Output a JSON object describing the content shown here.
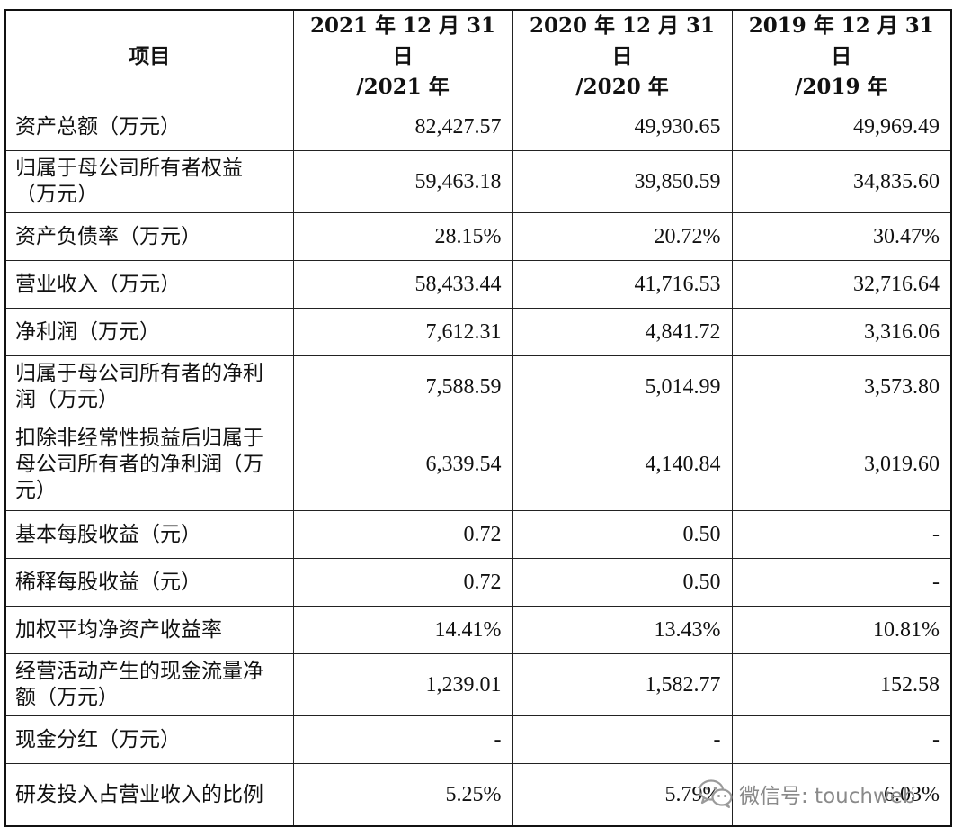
{
  "table": {
    "headers": [
      "项目",
      "2021年12月31日/2021年",
      "2020年12月31日/2020年",
      "2019年12月31日/2019年"
    ],
    "header_lines": [
      [
        "项目"
      ],
      [
        "2021 年 12 月 31 日",
        "/2021 年"
      ],
      [
        "2020 年 12 月 31 日",
        "/2020 年"
      ],
      [
        "2019 年 12 月 31 日",
        "/2019 年"
      ]
    ],
    "rows": [
      {
        "label": "资产总额（万元）",
        "values": [
          "82,427.57",
          "49,930.65",
          "49,969.49"
        ]
      },
      {
        "label": "归属于母公司所有者权益（万元）",
        "values": [
          "59,463.18",
          "39,850.59",
          "34,835.60"
        ]
      },
      {
        "label": "资产负债率（万元）",
        "values": [
          "28.15%",
          "20.72%",
          "30.47%"
        ]
      },
      {
        "label": "营业收入（万元）",
        "values": [
          "58,433.44",
          "41,716.53",
          "32,716.64"
        ]
      },
      {
        "label": "净利润（万元）",
        "values": [
          "7,612.31",
          "4,841.72",
          "3,316.06"
        ]
      },
      {
        "label": "归属于母公司所有者的净利润（万元）",
        "values": [
          "7,588.59",
          "5,014.99",
          "3,573.80"
        ]
      },
      {
        "label": "扣除非经常性损益后归属于母公司所有者的净利润（万元）",
        "values": [
          "6,339.54",
          "4,140.84",
          "3,019.60"
        ]
      },
      {
        "label": "基本每股收益（元）",
        "values": [
          "0.72",
          "0.50",
          "-"
        ]
      },
      {
        "label": "稀释每股收益（元）",
        "values": [
          "0.72",
          "0.50",
          "-"
        ]
      },
      {
        "label": "加权平均净资产收益率",
        "values": [
          "14.41%",
          "13.43%",
          "10.81%"
        ]
      },
      {
        "label": "经营活动产生的现金流量净额（万元）",
        "values": [
          "1,239.01",
          "1,582.77",
          "152.58"
        ]
      },
      {
        "label": "现金分红（万元）",
        "values": [
          "-",
          "-",
          "-"
        ]
      },
      {
        "label": "研发投入占营业收入的比例",
        "values": [
          "5.25%",
          "5.79%",
          "6.03%"
        ]
      }
    ]
  },
  "watermark": {
    "text": "微信号: touchweb",
    "icon": "wechat-icon"
  }
}
